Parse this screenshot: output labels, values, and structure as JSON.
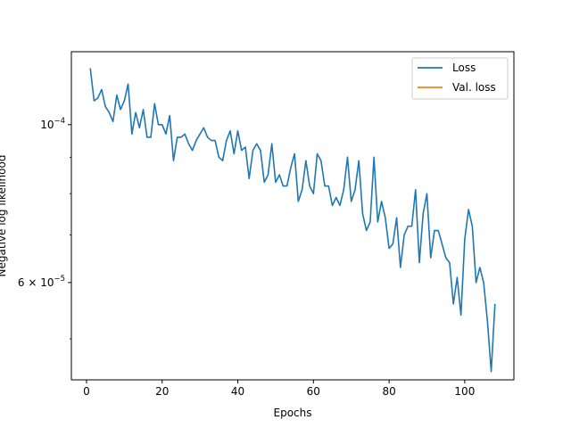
{
  "chart_data": {
    "type": "line",
    "title": "",
    "xlabel": "Epochs",
    "ylabel": "Negative log likelihood",
    "yscale": "log",
    "xlim": [
      -4,
      113
    ],
    "ylim": [
      4.38e-05,
      0.0001266
    ],
    "xticks": [
      {
        "value": 0,
        "label": "0"
      },
      {
        "value": 20,
        "label": "20"
      },
      {
        "value": 40,
        "label": "40"
      },
      {
        "value": 60,
        "label": "60"
      },
      {
        "value": 80,
        "label": "80"
      },
      {
        "value": 100,
        "label": "100"
      }
    ],
    "ytick_labels": [
      {
        "value": 0.0001,
        "base": "10",
        "exp": "−4",
        "prefix": ""
      },
      {
        "value": 6e-05,
        "base": "10",
        "exp": "−5",
        "prefix": "6 × "
      }
    ],
    "yminor": [
      5e-05,
      7e-05,
      8e-05,
      9e-05
    ],
    "grid": false,
    "legend": {
      "placement": "top-right",
      "entries": [
        {
          "label": "Loss",
          "color": "#1f77b4"
        },
        {
          "label": "Val. loss",
          "color": "#ff7f0e"
        }
      ]
    },
    "series": [
      {
        "name": "Loss",
        "color": "#1f77b4",
        "x": [
          1,
          2,
          3,
          4,
          5,
          6,
          7,
          8,
          9,
          10,
          11,
          12,
          13,
          14,
          15,
          16,
          17,
          18,
          19,
          20,
          21,
          22,
          23,
          24,
          25,
          26,
          27,
          28,
          29,
          30,
          31,
          32,
          33,
          34,
          35,
          36,
          37,
          38,
          39,
          40,
          41,
          42,
          43,
          44,
          45,
          46,
          47,
          48,
          49,
          50,
          51,
          52,
          53,
          54,
          55,
          56,
          57,
          58,
          59,
          60,
          61,
          62,
          63,
          64,
          65,
          66,
          67,
          68,
          69,
          70,
          71,
          72,
          73,
          74,
          75,
          76,
          77,
          78,
          79,
          80,
          81,
          82,
          83,
          84,
          85,
          86,
          87,
          88,
          89,
          90,
          91,
          92,
          93,
          94,
          95,
          96,
          97,
          98,
          99,
          100,
          101,
          102,
          103,
          104,
          105,
          106,
          107,
          108
        ],
        "y": [
          0.00012,
          0.000108,
          0.000109,
          0.000112,
          0.000106,
          0.000104,
          0.000101,
          0.00011,
          0.000105,
          0.000108,
          0.000114,
          9.7e-05,
          0.000104,
          9.9e-05,
          0.000105,
          9.6e-05,
          9.6e-05,
          0.000107,
          0.0001,
          0.0001,
          9.7e-05,
          0.000103,
          8.9e-05,
          9.6e-05,
          9.6e-05,
          9.7e-05,
          9.4e-05,
          9.2e-05,
          9.5e-05,
          9.7e-05,
          9.9e-05,
          9.6e-05,
          9.5e-05,
          9.5e-05,
          9e-05,
          8.9e-05,
          9.5e-05,
          9.8e-05,
          9.1e-05,
          9.8e-05,
          9.2e-05,
          9.3e-05,
          8.4e-05,
          9.2e-05,
          9.4e-05,
          9.2e-05,
          8.3e-05,
          8.5e-05,
          9.4e-05,
          8.3e-05,
          8.5e-05,
          8.2e-05,
          8.2e-05,
          8.7e-05,
          9.1e-05,
          7.8e-05,
          8.1e-05,
          8.9e-05,
          8.2e-05,
          8e-05,
          9.1e-05,
          8.9e-05,
          8.2e-05,
          8.2e-05,
          7.7e-05,
          7.9e-05,
          7.7e-05,
          8.1e-05,
          9e-05,
          7.8e-05,
          8.1e-05,
          8.9e-05,
          7.5e-05,
          7.1e-05,
          7.3e-05,
          9e-05,
          7.3e-05,
          7.8e-05,
          7.4e-05,
          6.7e-05,
          6.8e-05,
          7.4e-05,
          6.3e-05,
          7e-05,
          7.2e-05,
          7.2e-05,
          8.1e-05,
          6.4e-05,
          7.5e-05,
          8e-05,
          6.5e-05,
          7.1e-05,
          7.1e-05,
          6.8e-05,
          6.5e-05,
          6.4e-05,
          5.6e-05,
          6.1e-05,
          5.4e-05,
          6.9e-05,
          7.6e-05,
          7.2e-05,
          6e-05,
          6.3e-05,
          6e-05,
          5.3e-05,
          4.5e-05,
          5.6e-05
        ]
      },
      {
        "name": "Val. loss",
        "color": "#ff7f0e",
        "x": [],
        "y": []
      }
    ]
  }
}
